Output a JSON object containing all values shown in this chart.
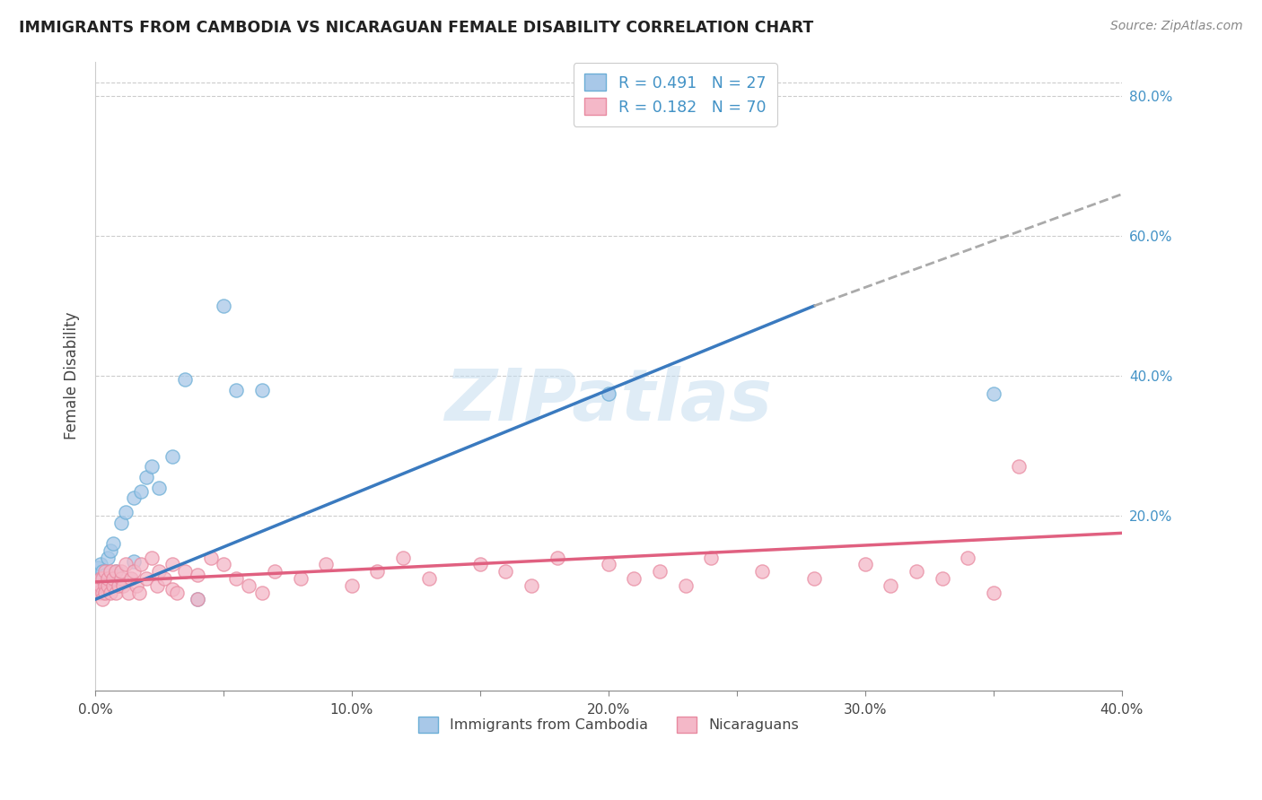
{
  "title": "IMMIGRANTS FROM CAMBODIA VS NICARAGUAN FEMALE DISABILITY CORRELATION CHART",
  "source": "Source: ZipAtlas.com",
  "ylabel": "Female Disability",
  "xlim": [
    0.0,
    0.4
  ],
  "ylim": [
    -0.05,
    0.85
  ],
  "xtick_positions": [
    0.0,
    0.05,
    0.1,
    0.15,
    0.2,
    0.25,
    0.3,
    0.35,
    0.4
  ],
  "xtick_labels": [
    "0.0%",
    "",
    "10.0%",
    "",
    "20.0%",
    "",
    "30.0%",
    "",
    "40.0%"
  ],
  "ytick_positions_right": [
    0.2,
    0.4,
    0.6,
    0.8
  ],
  "ytick_labels_right": [
    "20.0%",
    "40.0%",
    "60.0%",
    "80.0%"
  ],
  "color_cambodia_fill": "#a8c8e8",
  "color_cambodia_edge": "#6baed6",
  "color_nicaraguan_fill": "#f4b8c8",
  "color_nicaraguan_edge": "#e88aa0",
  "color_blue_line": "#3a7abf",
  "color_pink_line": "#e06080",
  "color_dashed_line": "#aaaaaa",
  "watermark": "ZIPatlas",
  "blue_line_x0": 0.0,
  "blue_line_y0": 0.08,
  "blue_line_x1": 0.28,
  "blue_line_y1": 0.5,
  "dashed_line_x0": 0.28,
  "dashed_line_y0": 0.5,
  "dashed_line_x1": 0.4,
  "dashed_line_y1": 0.66,
  "pink_line_x0": 0.0,
  "pink_line_y0": 0.105,
  "pink_line_x1": 0.4,
  "pink_line_y1": 0.175,
  "cambodia_x": [
    0.001,
    0.002,
    0.003,
    0.004,
    0.005,
    0.006,
    0.007,
    0.008,
    0.01,
    0.012,
    0.015,
    0.018,
    0.02,
    0.022,
    0.025,
    0.03,
    0.035,
    0.05,
    0.055,
    0.065,
    0.2,
    0.35,
    0.003,
    0.004,
    0.006,
    0.015,
    0.04
  ],
  "cambodia_y": [
    0.125,
    0.13,
    0.12,
    0.115,
    0.14,
    0.15,
    0.16,
    0.12,
    0.19,
    0.205,
    0.225,
    0.235,
    0.255,
    0.27,
    0.24,
    0.285,
    0.395,
    0.5,
    0.38,
    0.38,
    0.375,
    0.375,
    0.108,
    0.1,
    0.105,
    0.135,
    0.08
  ],
  "nicaraguan_x": [
    0.001,
    0.001,
    0.002,
    0.002,
    0.003,
    0.003,
    0.003,
    0.004,
    0.004,
    0.004,
    0.005,
    0.005,
    0.006,
    0.006,
    0.007,
    0.007,
    0.008,
    0.008,
    0.009,
    0.01,
    0.01,
    0.011,
    0.012,
    0.013,
    0.014,
    0.015,
    0.016,
    0.017,
    0.018,
    0.02,
    0.022,
    0.024,
    0.025,
    0.027,
    0.03,
    0.03,
    0.032,
    0.035,
    0.04,
    0.04,
    0.045,
    0.05,
    0.055,
    0.06,
    0.065,
    0.07,
    0.08,
    0.09,
    0.1,
    0.11,
    0.12,
    0.13,
    0.15,
    0.16,
    0.17,
    0.18,
    0.2,
    0.21,
    0.22,
    0.23,
    0.24,
    0.26,
    0.28,
    0.3,
    0.31,
    0.32,
    0.33,
    0.34,
    0.35,
    0.36
  ],
  "nicaraguan_y": [
    0.1,
    0.09,
    0.11,
    0.1,
    0.09,
    0.08,
    0.11,
    0.1,
    0.09,
    0.12,
    0.1,
    0.11,
    0.12,
    0.09,
    0.1,
    0.11,
    0.09,
    0.12,
    0.1,
    0.11,
    0.12,
    0.1,
    0.13,
    0.09,
    0.11,
    0.12,
    0.1,
    0.09,
    0.13,
    0.11,
    0.14,
    0.1,
    0.12,
    0.11,
    0.095,
    0.13,
    0.09,
    0.12,
    0.115,
    0.08,
    0.14,
    0.13,
    0.11,
    0.1,
    0.09,
    0.12,
    0.11,
    0.13,
    0.1,
    0.12,
    0.14,
    0.11,
    0.13,
    0.12,
    0.1,
    0.14,
    0.13,
    0.11,
    0.12,
    0.1,
    0.14,
    0.12,
    0.11,
    0.13,
    0.1,
    0.12,
    0.11,
    0.14,
    0.09,
    0.27
  ],
  "legend1_label": "R = 0.491   N = 27",
  "legend2_label": "R = 0.182   N = 70",
  "legend_text_color": "#4292c6",
  "bottom_legend1": "Immigrants from Cambodia",
  "bottom_legend2": "Nicaraguans"
}
